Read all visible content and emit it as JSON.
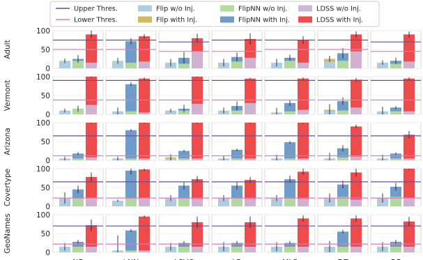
{
  "chart_data": {
    "type": "bar",
    "legend": {
      "placement": "top-center",
      "lines": [
        {
          "name": "Upper Thres.",
          "color": "#6a4c93"
        },
        {
          "name": "Lower Thres.",
          "color": "#e377c2"
        }
      ],
      "bars": [
        {
          "name": "Flip w/o Inj.",
          "color": "#aecde1"
        },
        {
          "name": "Flip with Inj.",
          "color": "#d4b95e"
        },
        {
          "name": "FlipNN w/o Inj.",
          "color": "#b4dc9c"
        },
        {
          "name": "FlipNN with Inj.",
          "color": "#6f9cc9"
        },
        {
          "name": "LDSS w/o Inj.",
          "color": "#cdb6d6"
        },
        {
          "name": "LDSS with Inj.",
          "color": "#ee4b4b"
        }
      ]
    },
    "columns": [
      "NB",
      "kNN",
      "LSVC",
      "LR",
      "MLP",
      "DT",
      "RF"
    ],
    "rows": [
      "Adult",
      "Vermont",
      "Arizona",
      "Covertype",
      "GeoNames"
    ],
    "ylim": [
      0,
      100
    ],
    "yticks": [
      "0",
      "50",
      "100"
    ],
    "panels": [
      [
        {
          "thr": [
            50,
            75
          ],
          "wo": [
            20,
            20,
            15
          ],
          "wi": [
            null,
            25,
            90
          ],
          "e": [
            4,
            6,
            10,
            10
          ]
        },
        {
          "thr": [
            50,
            75
          ],
          "wo": [
            20,
            15,
            18
          ],
          "wi": [
            12,
            72,
            85
          ],
          "e": [
            3,
            8,
            8,
            6
          ]
        },
        {
          "thr": [
            45,
            70
          ],
          "wo": [
            15,
            12,
            45
          ],
          "wi": [
            null,
            28,
            80
          ],
          "e": [
            3,
            10,
            15,
            12
          ]
        },
        {
          "thr": [
            45,
            75
          ],
          "wo": [
            15,
            18,
            28
          ],
          "wi": [
            null,
            30,
            78
          ],
          "e": [
            3,
            10,
            12,
            15
          ]
        },
        {
          "thr": [
            50,
            75
          ],
          "wo": [
            15,
            20,
            15
          ],
          "wi": [
            null,
            28,
            75
          ],
          "e": [
            3,
            10,
            8,
            10
          ]
        },
        {
          "thr": [
            50,
            75
          ],
          "wo": [
            18,
            20,
            45
          ],
          "wi": [
            25,
            40,
            90
          ],
          "e": [
            5,
            8,
            14,
            8
          ]
        },
        {
          "thr": [
            45,
            70
          ],
          "wo": [
            15,
            12,
            18
          ],
          "wi": [
            null,
            20,
            90
          ],
          "e": [
            3,
            6,
            8,
            8
          ]
        }
      ],
      [
        {
          "thr": [
            38,
            90
          ],
          "wo": [
            10,
            15,
            25
          ],
          "wi": [
            null,
            15,
            100
          ],
          "e": [
            3,
            5,
            8,
            3
          ]
        },
        {
          "thr": [
            38,
            90
          ],
          "wo": [
            8,
            8,
            5
          ],
          "wi": [
            null,
            80,
            95
          ],
          "e": [
            3,
            10,
            5,
            3
          ]
        },
        {
          "thr": [
            38,
            90
          ],
          "wo": [
            10,
            10,
            28
          ],
          "wi": [
            10,
            15,
            100
          ],
          "e": [
            3,
            5,
            10,
            2
          ]
        },
        {
          "thr": [
            38,
            90
          ],
          "wo": [
            10,
            10,
            30
          ],
          "wi": [
            8,
            22,
            95
          ],
          "e": [
            3,
            8,
            12,
            2
          ]
        },
        {
          "thr": [
            38,
            90
          ],
          "wo": [
            5,
            8,
            12
          ],
          "wi": [
            null,
            30,
            95
          ],
          "e": [
            3,
            12,
            8,
            3
          ]
        },
        {
          "thr": [
            38,
            90
          ],
          "wo": [
            10,
            10,
            18
          ],
          "wi": [
            12,
            35,
            92
          ],
          "e": [
            3,
            15,
            10,
            5
          ]
        },
        {
          "thr": [
            38,
            90
          ],
          "wo": [
            8,
            8,
            8
          ],
          "wi": [
            null,
            18,
            95
          ],
          "e": [
            3,
            12,
            4,
            3
          ]
        }
      ],
      [
        {
          "thr": [
            12,
            65
          ],
          "wo": [
            5,
            5,
            8
          ],
          "wi": [
            null,
            18,
            100
          ],
          "e": [
            3,
            5,
            4,
            2
          ]
        },
        {
          "thr": [
            12,
            65
          ],
          "wo": [
            5,
            5,
            5
          ],
          "wi": [
            null,
            80,
            100
          ],
          "e": [
            2,
            5,
            3,
            2
          ]
        },
        {
          "thr": [
            12,
            65
          ],
          "wo": [
            5,
            5,
            5
          ],
          "wi": [
            8,
            25,
            100
          ],
          "e": [
            3,
            8,
            3,
            2
          ]
        },
        {
          "thr": [
            12,
            65
          ],
          "wo": [
            5,
            5,
            5
          ],
          "wi": [
            null,
            28,
            100
          ],
          "e": [
            3,
            8,
            3,
            2
          ]
        },
        {
          "thr": [
            12,
            65
          ],
          "wo": [
            5,
            5,
            5
          ],
          "wi": [
            null,
            48,
            100
          ],
          "e": [
            3,
            10,
            3,
            2
          ]
        },
        {
          "thr": [
            12,
            65
          ],
          "wo": [
            5,
            8,
            10
          ],
          "wi": [
            null,
            32,
            90
          ],
          "e": [
            3,
            15,
            8,
            5
          ]
        },
        {
          "thr": [
            12,
            65
          ],
          "wo": [
            5,
            5,
            5
          ],
          "wi": [
            null,
            18,
            68
          ],
          "e": [
            3,
            10,
            3,
            10
          ]
        }
      ],
      [
        {
          "thr": [
            22,
            65
          ],
          "wo": [
            22,
            22,
            22
          ],
          "wi": [
            null,
            45,
            78
          ],
          "e": [
            3,
            15,
            10,
            12
          ]
        },
        {
          "thr": [
            22,
            65
          ],
          "wo": [
            15,
            22,
            22
          ],
          "wi": [
            null,
            95,
            98
          ],
          "e": [
            3,
            3,
            10,
            3
          ]
        },
        {
          "thr": [
            22,
            65
          ],
          "wo": [
            22,
            22,
            20
          ],
          "wi": [
            null,
            55,
            72
          ],
          "e": [
            3,
            8,
            10,
            8
          ]
        },
        {
          "thr": [
            22,
            65
          ],
          "wo": [
            22,
            22,
            20
          ],
          "wi": [
            null,
            55,
            70
          ],
          "e": [
            3,
            8,
            10,
            8
          ]
        },
        {
          "thr": [
            22,
            65
          ],
          "wo": [
            22,
            22,
            20
          ],
          "wi": [
            null,
            72,
            92
          ],
          "e": [
            3,
            8,
            10,
            8
          ]
        },
        {
          "thr": [
            22,
            65
          ],
          "wo": [
            22,
            25,
            18
          ],
          "wi": [
            null,
            58,
            90
          ],
          "e": [
            3,
            12,
            10,
            10
          ]
        },
        {
          "thr": [
            22,
            65
          ],
          "wo": [
            22,
            25,
            22
          ],
          "wi": [
            null,
            52,
            100
          ],
          "e": [
            3,
            12,
            10,
            3
          ]
        }
      ],
      [
        {
          "thr": [
            22,
            70
          ],
          "wo": [
            15,
            15,
            15
          ],
          "wi": [
            null,
            28,
            72
          ],
          "e": [
            3,
            10,
            5,
            15
          ]
        },
        {
          "thr": [
            22,
            70
          ],
          "wo": [
            5,
            5,
            5
          ],
          "wi": [
            null,
            58,
            95
          ],
          "e": [
            3,
            40,
            4,
            3
          ]
        },
        {
          "thr": [
            22,
            70
          ],
          "wo": [
            15,
            15,
            15
          ],
          "wi": [
            null,
            25,
            80
          ],
          "e": [
            3,
            10,
            5,
            15
          ]
        },
        {
          "thr": [
            22,
            70
          ],
          "wo": [
            15,
            15,
            15
          ],
          "wi": [
            null,
            25,
            80
          ],
          "e": [
            3,
            12,
            5,
            15
          ]
        },
        {
          "thr": [
            22,
            70
          ],
          "wo": [
            15,
            15,
            15
          ],
          "wi": [
            null,
            25,
            90
          ],
          "e": [
            3,
            12,
            5,
            8
          ]
        },
        {
          "thr": [
            22,
            70
          ],
          "wo": [
            15,
            15,
            15
          ],
          "wi": [
            null,
            55,
            90
          ],
          "e": [
            3,
            15,
            5,
            8
          ]
        },
        {
          "thr": [
            22,
            70
          ],
          "wo": [
            15,
            15,
            15
          ],
          "wi": [
            null,
            28,
            82
          ],
          "e": [
            3,
            12,
            5,
            12
          ]
        }
      ]
    ]
  }
}
